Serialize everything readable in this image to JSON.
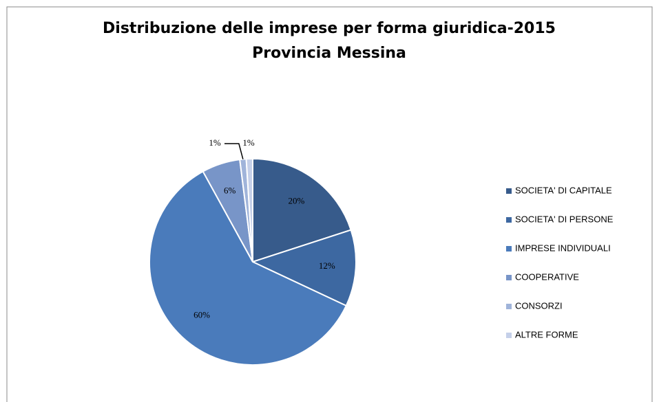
{
  "chart_data": {
    "type": "pie",
    "title": "Distribuzione delle imprese per forma giuridica-2015",
    "subtitle": "Provincia Messina",
    "categories": [
      "SOCIETA' DI CAPITALE",
      "SOCIETA' DI PERSONE",
      "IMPRESE INDIVIDUALI",
      "COOPERATIVE",
      "CONSORZI",
      "ALTRE FORME"
    ],
    "values": [
      20,
      12,
      60,
      6,
      1,
      1
    ],
    "value_labels": [
      "20%",
      "12%",
      "60%",
      "6%",
      "1%",
      "1%"
    ],
    "colors": [
      "#375b8b",
      "#3d68a1",
      "#4a7bbb",
      "#7895c8",
      "#a0b4da",
      "#c5d0e9"
    ],
    "legend": "right"
  }
}
